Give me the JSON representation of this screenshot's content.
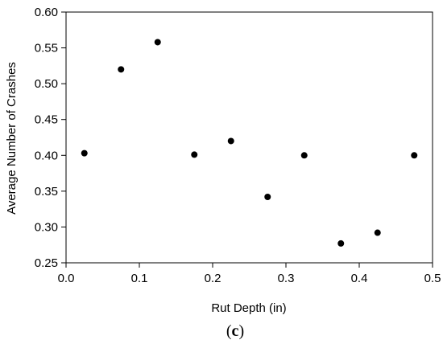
{
  "chart_data": {
    "type": "scatter",
    "title": "",
    "xlabel": "Rut Depth (in)",
    "ylabel": "Average Number of Crashes",
    "xlim": [
      0.0,
      0.5
    ],
    "ylim": [
      0.25,
      0.6
    ],
    "x_ticks": [
      "0.0",
      "0.1",
      "0.2",
      "0.3",
      "0.4",
      "0.5"
    ],
    "y_ticks": [
      "0.25",
      "0.30",
      "0.35",
      "0.40",
      "0.45",
      "0.50",
      "0.55",
      "0.60"
    ],
    "grid": false,
    "legend": "none",
    "marker_color": "#000000",
    "points": [
      {
        "x": 0.025,
        "y": 0.403
      },
      {
        "x": 0.075,
        "y": 0.52
      },
      {
        "x": 0.125,
        "y": 0.558
      },
      {
        "x": 0.175,
        "y": 0.401
      },
      {
        "x": 0.225,
        "y": 0.42
      },
      {
        "x": 0.275,
        "y": 0.342
      },
      {
        "x": 0.325,
        "y": 0.4
      },
      {
        "x": 0.375,
        "y": 0.277
      },
      {
        "x": 0.425,
        "y": 0.292
      },
      {
        "x": 0.475,
        "y": 0.4
      }
    ]
  },
  "caption": {
    "open": "(",
    "letter": "c",
    "close": ")"
  }
}
